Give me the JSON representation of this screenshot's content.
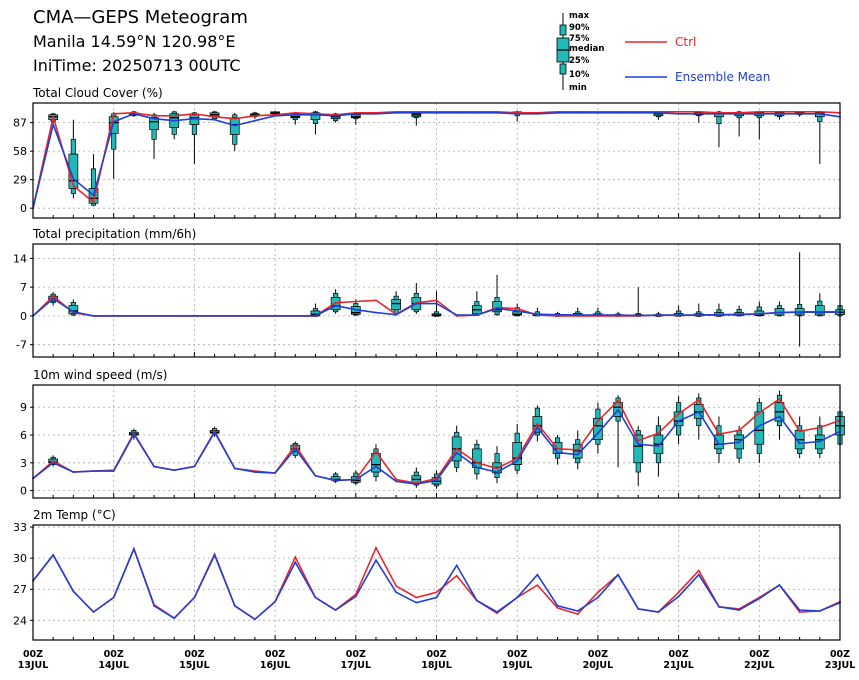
{
  "header": {
    "title": "CMA—GEPS Meteogram",
    "location": "Manila 14.59°N 120.98°E",
    "init_time": "IniTime: 20250713 00UTC"
  },
  "legend": {
    "box_labels": [
      "max",
      "90%",
      "75%",
      "median",
      "25%",
      "10%",
      "min"
    ],
    "ctrl_label": "Ctrl",
    "mean_label": "Ensemble Mean",
    "ctrl_color": "#e8262b",
    "mean_color": "#1f3fd8",
    "box_fill": "#22b8b8"
  },
  "time_axis": {
    "hour_label": "00Z",
    "dates": [
      "13JUL",
      "14JUL",
      "15JUL",
      "16JUL",
      "17JUL",
      "18JUL",
      "19JUL",
      "20JUL",
      "21JUL",
      "22JUL",
      "23JUL"
    ],
    "step_hours": 6
  },
  "chart_data": [
    {
      "type": "box",
      "title": "Total Cloud Cover (%)",
      "ylim": [
        -10,
        107
      ],
      "yticks": [
        0,
        29,
        58,
        87
      ],
      "ctrl": [
        0,
        93,
        23,
        6,
        96,
        97,
        94,
        94,
        96,
        93,
        91,
        94,
        95,
        97,
        96,
        95,
        97,
        97,
        98,
        98,
        98,
        98,
        98,
        98,
        97,
        97,
        98,
        98,
        98,
        98,
        98,
        98,
        98,
        98,
        97,
        97,
        98,
        98,
        98,
        98,
        97
      ],
      "mean": [
        0,
        85,
        30,
        13,
        88,
        96,
        91,
        89,
        91,
        90,
        84,
        89,
        94,
        95,
        95,
        94,
        96,
        96,
        97,
        97,
        97,
        97,
        97,
        97,
        96,
        96,
        97,
        97,
        97,
        97,
        97,
        97,
        96,
        96,
        96,
        96,
        96,
        96,
        96,
        96,
        93
      ],
      "boxes": [
        [
          1,
          87,
          88,
          90,
          93,
          95,
          96,
          97
        ],
        [
          2,
          10,
          15,
          20,
          28,
          55,
          70,
          90
        ],
        [
          3,
          2,
          3,
          5,
          10,
          20,
          40,
          55
        ],
        [
          4,
          30,
          60,
          76,
          87,
          93,
          96,
          98
        ],
        [
          5,
          93,
          94,
          95,
          96,
          97,
          98,
          99
        ],
        [
          6,
          50,
          70,
          80,
          88,
          92,
          95,
          97
        ],
        [
          7,
          70,
          75,
          82,
          92,
          96,
          98,
          99
        ],
        [
          8,
          45,
          75,
          85,
          92,
          95,
          97,
          98
        ],
        [
          9,
          90,
          91,
          93,
          95,
          97,
          98,
          99
        ],
        [
          10,
          58,
          65,
          75,
          85,
          92,
          95,
          97
        ],
        [
          11,
          91,
          93,
          94,
          95,
          96,
          97,
          98
        ],
        [
          12,
          94,
          95,
          96,
          97,
          98,
          98,
          99
        ],
        [
          13,
          85,
          90,
          92,
          93,
          96,
          97,
          98
        ],
        [
          14,
          75,
          86,
          90,
          95,
          97,
          98,
          99
        ],
        [
          15,
          87,
          89,
          91,
          93,
          95,
          96,
          97
        ],
        [
          16,
          85,
          91,
          92,
          93,
          95,
          96,
          97
        ],
        [
          19,
          84,
          92,
          93,
          95,
          96,
          97,
          98
        ],
        [
          24,
          88,
          94,
          96,
          97,
          98,
          98,
          99
        ],
        [
          31,
          90,
          93,
          94,
          96,
          97,
          98,
          99
        ],
        [
          33,
          87,
          94,
          95,
          96,
          97,
          98,
          99
        ],
        [
          34,
          62,
          86,
          93,
          96,
          97,
          98,
          99
        ],
        [
          35,
          73,
          92,
          94,
          96,
          97,
          98,
          99
        ],
        [
          36,
          70,
          92,
          94,
          96,
          97,
          98,
          99
        ],
        [
          37,
          90,
          93,
          94,
          96,
          97,
          98,
          99
        ],
        [
          38,
          93,
          95,
          96,
          97,
          98,
          98,
          99
        ],
        [
          39,
          45,
          88,
          93,
          96,
          97,
          98,
          99
        ]
      ]
    },
    {
      "type": "box",
      "title": "Total precipitation (mm/6h)",
      "ylim": [
        -10,
        17.5
      ],
      "yticks": [
        -7,
        0,
        7,
        14
      ],
      "ctrl": [
        0,
        4.8,
        0.8,
        0,
        0,
        0,
        0,
        0,
        0,
        0,
        0,
        0,
        0,
        0,
        0,
        3.2,
        3.5,
        3.8,
        0.4,
        3.2,
        3.8,
        0,
        0.2,
        2,
        1.8,
        0.2,
        0,
        0,
        0,
        0,
        0,
        0.2,
        0.1,
        0.2,
        0.2,
        0.3,
        0.5,
        0.8,
        1,
        1,
        1
      ],
      "mean": [
        0,
        4.2,
        1,
        0,
        0,
        0,
        0,
        0,
        0,
        0,
        0,
        0,
        0,
        0,
        0,
        2.5,
        1.5,
        0.8,
        0.3,
        3,
        3,
        0.2,
        0.2,
        1.8,
        1.2,
        0.4,
        0.3,
        0.2,
        0.2,
        0.2,
        0.1,
        0.2,
        0.2,
        0.2,
        0.3,
        0.4,
        0.5,
        0.8,
        0.9,
        0.9,
        0.9
      ],
      "boxes": [
        [
          1,
          2.5,
          3.2,
          3.6,
          4.2,
          4.8,
          5.3,
          5.8
        ],
        [
          2,
          0,
          0.2,
          0.5,
          1.2,
          2.5,
          3.3,
          4
        ],
        [
          14,
          0,
          0,
          0,
          0.4,
          1.2,
          1.8,
          3
        ],
        [
          15,
          0.5,
          1,
          1.5,
          2.5,
          4.5,
          5.5,
          6.5
        ],
        [
          16,
          0,
          0.2,
          0.4,
          0.8,
          2.3,
          3,
          4
        ],
        [
          18,
          0,
          0.5,
          1.5,
          3,
          4,
          4.8,
          6
        ],
        [
          19,
          0.5,
          1,
          1.5,
          3,
          4.5,
          5.5,
          8
        ],
        [
          20,
          0,
          0,
          0,
          0.2,
          0.5,
          1,
          6
        ],
        [
          22,
          0,
          0.2,
          0.5,
          1.5,
          2.5,
          3.5,
          6
        ],
        [
          23,
          0,
          0.3,
          1,
          1.5,
          3.5,
          4.5,
          10
        ],
        [
          24,
          0,
          0,
          0.2,
          0.4,
          1,
          2,
          3
        ],
        [
          25,
          0,
          0,
          0.1,
          0.3,
          0.5,
          1,
          2
        ],
        [
          26,
          0,
          0,
          0,
          0.1,
          0.3,
          0.6,
          1
        ],
        [
          27,
          0,
          0,
          0.1,
          0.2,
          0.6,
          1,
          2
        ],
        [
          28,
          0,
          0,
          0.1,
          0.2,
          0.5,
          1,
          2
        ],
        [
          29,
          0,
          0,
          0,
          0.1,
          0.3,
          0.5,
          1
        ],
        [
          30,
          0,
          0,
          0,
          0.1,
          0.3,
          0.6,
          7
        ],
        [
          31,
          0,
          0,
          0,
          0.1,
          0.3,
          0.5,
          1
        ],
        [
          32,
          0,
          0,
          0,
          0.2,
          0.6,
          1.2,
          2.5
        ],
        [
          33,
          0,
          0,
          0,
          0.2,
          0.5,
          1,
          3
        ],
        [
          34,
          0,
          0,
          0,
          0.2,
          0.8,
          1.5,
          3
        ],
        [
          35,
          0,
          0,
          0.1,
          0.3,
          0.8,
          1.6,
          2.5
        ],
        [
          36,
          0,
          0,
          0.1,
          0.3,
          1.2,
          2.2,
          3.5
        ],
        [
          37,
          0,
          0,
          0.2,
          0.8,
          1.8,
          2.5,
          3.5
        ],
        [
          38,
          -7.5,
          0,
          0.2,
          0.8,
          1.8,
          2.8,
          15.5
        ],
        [
          39,
          0,
          0,
          0.2,
          0.8,
          2.5,
          3.6,
          5.5
        ],
        [
          40,
          0,
          0,
          0.3,
          0.9,
          1.5,
          2.5,
          4
        ]
      ]
    },
    {
      "type": "box",
      "title": "10m wind speed (m/s)",
      "ylim": [
        -0.8,
        11.4
      ],
      "yticks": [
        0,
        3,
        6,
        9
      ],
      "ctrl": [
        1.3,
        3.2,
        2,
        2.1,
        2.2,
        6.2,
        2.6,
        2.2,
        2.6,
        6.4,
        2.4,
        2.1,
        1.9,
        4.9,
        1.6,
        1.1,
        1.2,
        4.2,
        1.2,
        0.8,
        1.3,
        4.5,
        3,
        2.4,
        3.5,
        7.2,
        4.5,
        4.4,
        7.5,
        9.7,
        5.4,
        6.2,
        8.3,
        9.8,
        6.1,
        6.5,
        8.4,
        9.9,
        6.4,
        6.8,
        7.6
      ],
      "mean": [
        1.3,
        3,
        2,
        2.1,
        2.1,
        6.1,
        2.6,
        2.2,
        2.6,
        6.3,
        2.4,
        2,
        1.9,
        4.5,
        1.6,
        1.1,
        1.2,
        2.6,
        1,
        0.7,
        1.1,
        4.1,
        2.5,
        2,
        3.2,
        6.8,
        4.1,
        3.9,
        6.2,
        8.7,
        5,
        4.8,
        7.5,
        8.5,
        5,
        5.2,
        7,
        8,
        5.1,
        5.3,
        6.4
      ],
      "boxes": [
        [
          1,
          2.6,
          2.8,
          3,
          3.1,
          3.4,
          3.6,
          3.8
        ],
        [
          5,
          5.5,
          5.8,
          6,
          6.1,
          6.3,
          6.5,
          6.7
        ],
        [
          9,
          5.8,
          6,
          6.2,
          6.3,
          6.5,
          6.7,
          6.9
        ],
        [
          13,
          3.5,
          3.8,
          4.2,
          4.5,
          4.9,
          5.1,
          5.3
        ],
        [
          15,
          0.8,
          1,
          1.1,
          1.2,
          1.5,
          1.8,
          2
        ],
        [
          16,
          0.6,
          0.8,
          0.9,
          1.1,
          1.5,
          1.9,
          2.2
        ],
        [
          17,
          1,
          1.5,
          2,
          2.8,
          4,
          4.5,
          5
        ],
        [
          19,
          0.3,
          0.6,
          0.8,
          1.2,
          1.6,
          2,
          2.5
        ],
        [
          20,
          0.2,
          0.5,
          0.7,
          1,
          1.4,
          1.8,
          2.2
        ],
        [
          21,
          2,
          2.5,
          3.2,
          4.5,
          5.8,
          6.3,
          7
        ],
        [
          22,
          1.2,
          1.8,
          2.5,
          3,
          4.5,
          5,
          5.5
        ],
        [
          23,
          0.8,
          1.4,
          1.9,
          2.5,
          3,
          4,
          4.8
        ],
        [
          24,
          1.8,
          2.2,
          2.8,
          3.5,
          5.2,
          6.2,
          7.2
        ],
        [
          25,
          5.3,
          6,
          6.3,
          7,
          8,
          8.9,
          9.2
        ],
        [
          26,
          2.8,
          3.5,
          4,
          4.5,
          5.2,
          5.7,
          6
        ],
        [
          27,
          2.3,
          3,
          3.5,
          4.3,
          5,
          5.5,
          6.5
        ],
        [
          28,
          4,
          5,
          5.5,
          7,
          7.8,
          8.8,
          9.5
        ],
        [
          29,
          2.5,
          7.5,
          8,
          9,
          9.5,
          10,
          10.3
        ],
        [
          30,
          0.5,
          2,
          3,
          4.8,
          6,
          6.5,
          7
        ],
        [
          31,
          1.5,
          3,
          4,
          5,
          6,
          7,
          8
        ],
        [
          32,
          5,
          6,
          7,
          7.5,
          8.5,
          9.5,
          10.2
        ],
        [
          33,
          5.5,
          7,
          7.8,
          8.5,
          9.3,
          10,
          10.5
        ],
        [
          34,
          3,
          4,
          4.5,
          5,
          6,
          7,
          8
        ],
        [
          35,
          3,
          3.5,
          4.5,
          5.5,
          6,
          6.5,
          7
        ],
        [
          36,
          3,
          4,
          5,
          6.5,
          8.5,
          9.5,
          10
        ],
        [
          37,
          5.5,
          7,
          7.5,
          8.5,
          9.5,
          10.3,
          10.8
        ],
        [
          38,
          3.5,
          4,
          4.5,
          5.5,
          6.5,
          7,
          8
        ],
        [
          39,
          3.5,
          4,
          4.5,
          5.5,
          6,
          7,
          8
        ],
        [
          40,
          4,
          5,
          6,
          7,
          8,
          8.5,
          9
        ]
      ]
    },
    {
      "type": "box",
      "title": "2m Temp (°C)",
      "ylim": [
        22.1,
        33.2
      ],
      "yticks": [
        24,
        27,
        30,
        33
      ],
      "ctrl": [
        27.8,
        30.3,
        26.8,
        24.8,
        26.2,
        30.9,
        25.5,
        24.2,
        26.2,
        30.4,
        25.4,
        24.1,
        25.8,
        30.1,
        26.2,
        25,
        26.5,
        31,
        27.3,
        26.2,
        26.7,
        28.3,
        25.9,
        24.7,
        26.2,
        27.4,
        25.2,
        24.6,
        26.7,
        28.4,
        25.1,
        24.8,
        26.7,
        28.8,
        25.3,
        25.1,
        26.2,
        27.4,
        24.8,
        24.9,
        25.8
      ],
      "mean": [
        27.8,
        30.3,
        26.8,
        24.8,
        26.2,
        30.9,
        25.4,
        24.2,
        26.2,
        30.3,
        25.4,
        24.1,
        25.8,
        29.6,
        26.2,
        25,
        26.3,
        29.8,
        26.7,
        25.7,
        26.2,
        29.3,
        25.9,
        24.8,
        26.2,
        28.4,
        25.4,
        24.9,
        26.2,
        28.4,
        25.1,
        24.8,
        26.3,
        28.4,
        25.3,
        25,
        26.1,
        27.4,
        25,
        24.9,
        25.7
      ]
    }
  ]
}
